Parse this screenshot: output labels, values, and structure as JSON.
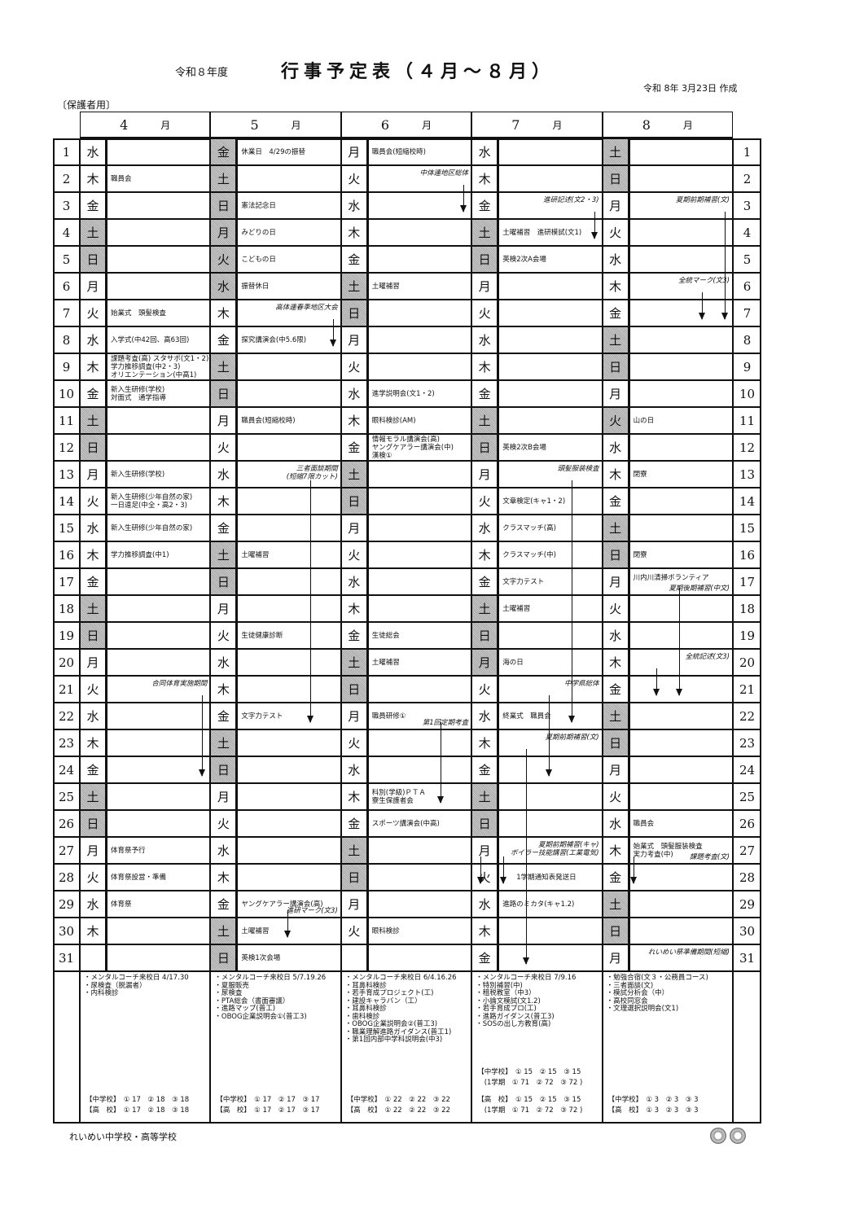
{
  "header": {
    "fiscal_year": "令和８年度",
    "title": "行事予定表（４月～８月）",
    "created": "令和 8年 3月23日 作成",
    "audience": "〔保護者用〕"
  },
  "footer": {
    "school": "れいめい中学校・高等学校"
  },
  "month_unit": "月",
  "months": [
    {
      "label": "4",
      "days": [
        {
          "w": "水"
        },
        {
          "w": "木",
          "t": "職員会"
        },
        {
          "w": "金"
        },
        {
          "w": "土",
          "h": true
        },
        {
          "w": "日",
          "h": true
        },
        {
          "w": "月"
        },
        {
          "w": "火",
          "t": "始業式　頭髪検査"
        },
        {
          "w": "水",
          "t": "入学式(中42回、高63回)"
        },
        {
          "w": "木",
          "t": "課題考査(高) スタサポ(文1・2)\n学力推移調査(中2・3)\nオリエンテーション(中高1)"
        },
        {
          "w": "金",
          "t": "新入生研修(学校)\n対面式　通学指導"
        },
        {
          "w": "土",
          "h": true
        },
        {
          "w": "日",
          "h": true
        },
        {
          "w": "月",
          "t": "新入生研修(学校)"
        },
        {
          "w": "火",
          "t": "新入生研修(少年自然の家)\n一日遠足(中全・高2・3)"
        },
        {
          "w": "水",
          "t": "新入生研修(少年自然の家)"
        },
        {
          "w": "木",
          "t": "学力推移調査(中1)"
        },
        {
          "w": "金"
        },
        {
          "w": "土",
          "h": true
        },
        {
          "w": "日",
          "h": true
        },
        {
          "w": "月"
        },
        {
          "w": "火",
          "n": "合同体育実施期間"
        },
        {
          "w": "水"
        },
        {
          "w": "木"
        },
        {
          "w": "金"
        },
        {
          "w": "土",
          "h": true
        },
        {
          "w": "日",
          "h": true
        },
        {
          "w": "月",
          "t": "体育祭予行"
        },
        {
          "w": "火",
          "t": "体育祭設営・準備"
        },
        {
          "w": "水",
          "t": "体育祭"
        },
        {
          "w": "木"
        },
        {
          "w": ""
        }
      ],
      "periods": [
        {
          "from": 21,
          "to": 24
        }
      ],
      "notes": [
        "・メンタルコーチ来校日 4/17.30",
        "・尿検査（脱漏者）",
        "・内科検診"
      ],
      "counts": [
        "【中学校】　① 17　② 18　③ 18",
        "【高　校】　① 17　② 18　③ 18"
      ]
    },
    {
      "label": "5",
      "days": [
        {
          "w": "金",
          "t": "休業日　4/29の振替",
          "h": true
        },
        {
          "w": "土",
          "h": true
        },
        {
          "w": "日",
          "t": "憲法記念日",
          "h": true
        },
        {
          "w": "月",
          "t": "みどりの日",
          "h": true
        },
        {
          "w": "火",
          "t": "こどもの日",
          "h": true
        },
        {
          "w": "水",
          "t": "振替休日",
          "h": true
        },
        {
          "w": "木",
          "n": "高体連春季地区大会"
        },
        {
          "w": "金",
          "t": "探究講演会(中5.6限)"
        },
        {
          "w": "土",
          "h": true
        },
        {
          "w": "日",
          "h": true
        },
        {
          "w": "月",
          "t": "職員会(短縮校時)"
        },
        {
          "w": "火"
        },
        {
          "w": "水",
          "n": "三者面談期間\n(短縮7限カット)"
        },
        {
          "w": "木"
        },
        {
          "w": "金"
        },
        {
          "w": "土",
          "t": "土曜補習",
          "h": true
        },
        {
          "w": "日",
          "h": true
        },
        {
          "w": "月"
        },
        {
          "w": "火",
          "t": "生徒健康診断"
        },
        {
          "w": "水"
        },
        {
          "w": "木"
        },
        {
          "w": "金",
          "t": "文字力テスト"
        },
        {
          "w": "土",
          "h": true
        },
        {
          "w": "日",
          "h": true
        },
        {
          "w": "月"
        },
        {
          "w": "火"
        },
        {
          "w": "水"
        },
        {
          "w": "木"
        },
        {
          "w": "金",
          "t": "ヤングケアラー講演会(高)",
          "n": "進研マーク(文3)"
        },
        {
          "w": "土",
          "t": "土曜補習",
          "h": true
        },
        {
          "w": "日",
          "t": "英検1次会場",
          "h": true
        }
      ],
      "periods": [
        {
          "from": 7,
          "to": 8
        },
        {
          "from": 13,
          "to": 22
        },
        {
          "from": 29,
          "to": 30
        }
      ],
      "notes": [
        "・メンタルコーチ来校日 5/7.19.26",
        "・夏服販売",
        "・尿検査",
        "・PTA総会（書面審議）",
        "・進路マップ(普工)",
        "・OBOG企業説明会①(普工3)"
      ],
      "counts": [
        "【中学校】　① 17　② 17　③ 17",
        "【高　校】　① 17　② 17　③ 17"
      ]
    },
    {
      "label": "6",
      "days": [
        {
          "w": "月",
          "t": "職員会(短縮校時)"
        },
        {
          "w": "火",
          "n": "中体連地区総体"
        },
        {
          "w": "水"
        },
        {
          "w": "木"
        },
        {
          "w": "金"
        },
        {
          "w": "土",
          "t": "土曜補習",
          "h": true
        },
        {
          "w": "日",
          "h": true
        },
        {
          "w": "月"
        },
        {
          "w": "火"
        },
        {
          "w": "水",
          "t": "進学説明会(文1・2)"
        },
        {
          "w": "木",
          "t": "眼科検診(AM)"
        },
        {
          "w": "金",
          "t": "情報モラル講演会(高)\nヤングケアラー講演会(中)\n漢検①"
        },
        {
          "w": "土",
          "h": true
        },
        {
          "w": "日",
          "h": true
        },
        {
          "w": "月"
        },
        {
          "w": "火"
        },
        {
          "w": "水"
        },
        {
          "w": "木"
        },
        {
          "w": "金",
          "t": "生徒総会"
        },
        {
          "w": "土",
          "t": "土曜補習",
          "h": true
        },
        {
          "w": "日",
          "h": true
        },
        {
          "w": "月",
          "t": "職員研修①",
          "n": "第1回定期考査"
        },
        {
          "w": "火"
        },
        {
          "w": "水"
        },
        {
          "w": "木",
          "t": "科別(学級)ＰＴＡ\n寮生保護者会"
        },
        {
          "w": "金",
          "t": "スポーツ講演会(中高)"
        },
        {
          "w": "土",
          "h": true
        },
        {
          "w": "日",
          "h": true
        },
        {
          "w": "月"
        },
        {
          "w": "火",
          "t": "眼科検診"
        },
        {
          "w": ""
        }
      ],
      "periods": [
        {
          "from": 2,
          "to": 3
        },
        {
          "from": 22,
          "to": 25
        }
      ],
      "notes": [
        "・メンタルコーチ来校日 6/4.16.26",
        "・耳鼻科検診",
        "・若手育成プロジェクト(工)",
        "・建設キャラバン（工）",
        "・耳鼻科検診",
        "・歯科検診",
        "・OBOG企業説明会②(普工3)",
        "・職業理解進路ガイダンス(普工1)",
        "・第1回内部中学科説明会(中3)"
      ],
      "counts": [
        "【中学校】　① 22　② 22　③ 22",
        "【高　校】　① 22　② 22　③ 22"
      ]
    },
    {
      "label": "7",
      "days": [
        {
          "w": "水"
        },
        {
          "w": "木"
        },
        {
          "w": "金",
          "n": "進研記述(文2・3)"
        },
        {
          "w": "土",
          "t": "土曜補習　進研模試(文1)",
          "h": true
        },
        {
          "w": "日",
          "t": "英検2次A会場",
          "h": true
        },
        {
          "w": "月"
        },
        {
          "w": "火"
        },
        {
          "w": "水"
        },
        {
          "w": "木"
        },
        {
          "w": "金"
        },
        {
          "w": "土",
          "h": true
        },
        {
          "w": "日",
          "t": "英検2次B会場",
          "h": true
        },
        {
          "w": "月",
          "n": "頭髪服装検査"
        },
        {
          "w": "火",
          "t": "文章検定(キャ1・2)"
        },
        {
          "w": "水",
          "t": "クラスマッチ(高)"
        },
        {
          "w": "木",
          "t": "クラスマッチ(中)"
        },
        {
          "w": "金",
          "t": "文字力テスト"
        },
        {
          "w": "土",
          "t": "土曜補習",
          "h": true
        },
        {
          "w": "日",
          "h": true
        },
        {
          "w": "月",
          "t": "海の日",
          "h": true
        },
        {
          "w": "火",
          "n": "中学県総体"
        },
        {
          "w": "水",
          "t": "終業式　職員会"
        },
        {
          "w": "木",
          "n": "夏期前期補習(文)"
        },
        {
          "w": "金"
        },
        {
          "w": "土",
          "h": true
        },
        {
          "w": "日",
          "h": true
        },
        {
          "w": "月",
          "n": "夏期前期補習(キャ)\nボイラー技能講習(工業電気)"
        },
        {
          "w": "火",
          "t": "　　1学期通知表発送日"
        },
        {
          "w": "水",
          "t": "進路のミカタ(キャ1.2)"
        },
        {
          "w": "木"
        },
        {
          "w": "金"
        }
      ],
      "periods": [
        {
          "from": 3,
          "to": 4
        },
        {
          "from": 13,
          "to": 22
        },
        {
          "from": 21,
          "to": 24
        },
        {
          "from": 23,
          "to": 31
        },
        {
          "from": 27,
          "to": 28
        },
        {
          "from": 27,
          "to": 28
        }
      ],
      "notes": [
        "・メンタルコーチ来校日 7/9.16",
        "・特別補習(中)",
        "・租税教室（中3）",
        "・小論文模試(文1.2)",
        "・若手育成プロ(工)",
        "・進路ガイダンス(普工3)",
        "・SOSの出し方教育(高)"
      ],
      "counts": [
        "【中学校】　① 15　② 15　③ 15",
        "　(1学期　① 71　② 72　③ 72 )",
        "【高　校】　① 15　② 15　③ 15",
        "　(1学期　① 71　② 72　③ 72 )"
      ]
    },
    {
      "label": "8",
      "days": [
        {
          "w": "土",
          "h": true
        },
        {
          "w": "日",
          "h": true
        },
        {
          "w": "月",
          "n": "夏期前期補習(文)"
        },
        {
          "w": "火"
        },
        {
          "w": "水"
        },
        {
          "w": "木",
          "n": "全統マーク(文3)"
        },
        {
          "w": "金"
        },
        {
          "w": "土",
          "h": true
        },
        {
          "w": "日",
          "h": true
        },
        {
          "w": "月"
        },
        {
          "w": "火",
          "t": "山の日",
          "h": true
        },
        {
          "w": "水"
        },
        {
          "w": "木",
          "t": "閉寮"
        },
        {
          "w": "金"
        },
        {
          "w": "土",
          "h": true
        },
        {
          "w": "日",
          "t": "閉寮",
          "h": true
        },
        {
          "w": "月",
          "t": "川内川清掃ボランティア\n ",
          "n": "夏期後期補習(中文)"
        },
        {
          "w": "火"
        },
        {
          "w": "水"
        },
        {
          "w": "木",
          "n": "全統記述(文3)"
        },
        {
          "w": "金"
        },
        {
          "w": "土",
          "h": true
        },
        {
          "w": "日",
          "h": true
        },
        {
          "w": "月"
        },
        {
          "w": "火"
        },
        {
          "w": "水",
          "t": "職員会"
        },
        {
          "w": "木",
          "t": "始業式　頭髪服装検査\n実力考査(中)",
          "n": "課題考査(文)"
        },
        {
          "w": "金"
        },
        {
          "w": "土",
          "h": true
        },
        {
          "w": "日",
          "h": true
        },
        {
          "w": "月",
          "n": "れいめい祭準備期間(短縮)"
        }
      ],
      "periods": [
        {
          "from": 3,
          "to": 7
        },
        {
          "from": 6,
          "to": 7
        },
        {
          "from": 17,
          "to": 21
        },
        {
          "from": 20,
          "to": 21
        },
        {
          "from": 27,
          "to": 28
        }
      ],
      "notes": [
        "・勉強合宿(文３・公務員コース)",
        "・三者面談(文)",
        "・模試分析会（中）",
        "・高校同窓会",
        "・文理選択説明会(文1)"
      ],
      "counts": [
        "【中学校】　① 3　② 3　③ 3",
        "【高　校】　① 3　② 3　③ 3"
      ]
    }
  ]
}
